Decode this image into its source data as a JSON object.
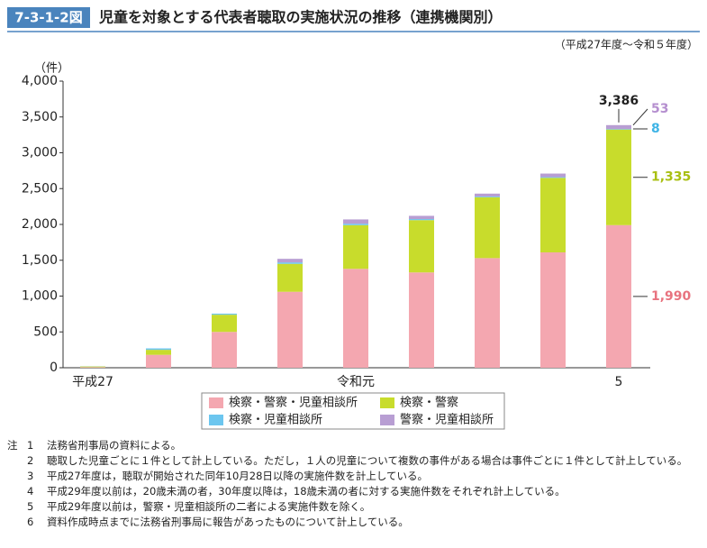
{
  "chart_data": {
    "type": "stacked-bar",
    "figure_number": "7-3-1-2図",
    "title": "児童を対象とする代表者聴取の実施状況の推移（連携機関別）",
    "subtitle": "（平成27年度～令和５年度）",
    "y_label": "（件）",
    "categories": [
      "平成27",
      null,
      null,
      null,
      "令和元",
      null,
      null,
      null,
      "5"
    ],
    "series": [
      {
        "name": "検察・警察・児童相談所",
        "color": "#f4a7b0",
        "label_color": "#e8737f",
        "values": [
          8,
          180,
          500,
          1060,
          1380,
          1330,
          1530,
          1610,
          1990
        ],
        "value_labels": [
          null,
          null,
          null,
          null,
          null,
          null,
          null,
          null,
          "1,990"
        ]
      },
      {
        "name": "検察・警察",
        "color": "#c8dc2c",
        "label_color": "#a9bf12",
        "values": [
          10,
          70,
          240,
          390,
          610,
          730,
          850,
          1040,
          1335
        ],
        "value_labels": [
          null,
          null,
          null,
          null,
          null,
          null,
          null,
          null,
          "1,335"
        ]
      },
      {
        "name": "検察・児童相談所",
        "color": "#6cc6ef",
        "label_color": "#3fb4e6",
        "values": [
          2,
          20,
          15,
          20,
          20,
          15,
          10,
          10,
          8
        ],
        "value_labels": [
          null,
          null,
          null,
          null,
          null,
          null,
          null,
          null,
          "8"
        ]
      },
      {
        "name": "警察・児童相談所",
        "color": "#b89ed3",
        "label_color": "#b58fcf",
        "values": [
          0,
          0,
          0,
          50,
          60,
          45,
          40,
          50,
          53
        ],
        "value_labels": [
          null,
          null,
          null,
          null,
          null,
          null,
          null,
          null,
          "53"
        ]
      }
    ],
    "total_label": {
      "value": 3386,
      "label": "3,386"
    },
    "ylim": [
      0,
      4000
    ],
    "yticks": [
      0,
      500,
      {
        "value": 1000,
        "label": "1,000"
      },
      {
        "value": 1500,
        "label": "1,500"
      },
      {
        "value": 2000,
        "label": "2,000"
      },
      {
        "value": 2500,
        "label": "2,500"
      },
      {
        "value": 3000,
        "label": "3,000"
      },
      {
        "value": 3500,
        "label": "3,500"
      },
      {
        "value": 4000,
        "label": "4,000"
      }
    ],
    "grid": false
  },
  "notes_label": "注",
  "notes": [
    {
      "num": "1",
      "text": "法務省刑事局の資料による。"
    },
    {
      "num": "2",
      "text": "聴取した児童ごとに１件として計上している。ただし，１人の児童について複数の事件がある場合は事件ごとに１件として計上している。"
    },
    {
      "num": "3",
      "text": "平成27年度は，聴取が開始された同年10月28日以降の実施件数を計上している。"
    },
    {
      "num": "4",
      "text": "平成29年度以前は，20歳未満の者，30年度以降は，18歳未満の者に対する実施件数をそれぞれ計上している。"
    },
    {
      "num": "5",
      "text": "平成29年度以前は，警察・児童相談所の二者による実施件数を除く。"
    },
    {
      "num": "6",
      "text": "資料作成時点までに法務省刑事局に報告があったものについて計上している。"
    }
  ]
}
